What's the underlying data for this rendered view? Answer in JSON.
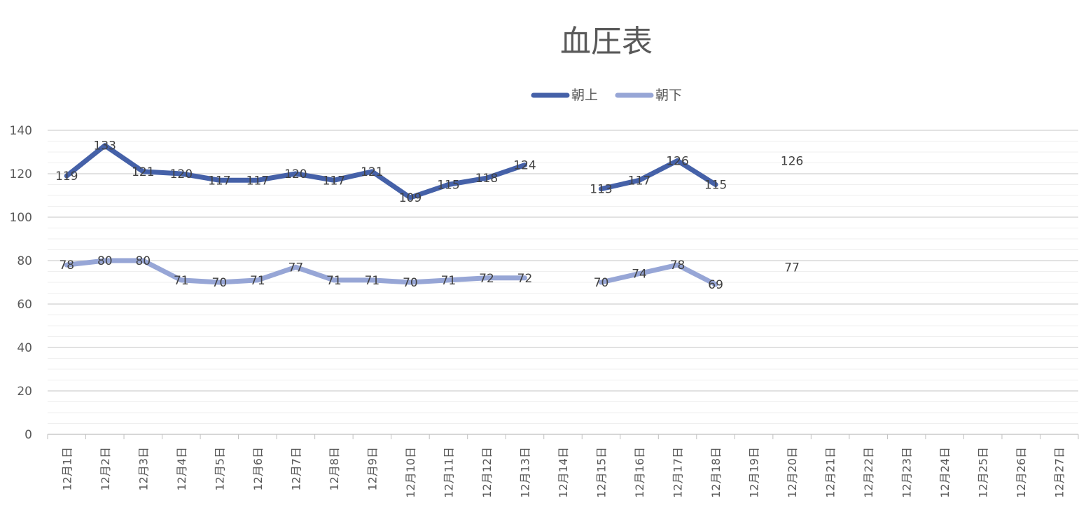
{
  "chart_data": {
    "type": "line",
    "title": "血圧表",
    "categories": [
      "12月1日",
      "12月2日",
      "12月3日",
      "12月4日",
      "12月5日",
      "12月6日",
      "12月7日",
      "12月8日",
      "12月9日",
      "12月10日",
      "12月11日",
      "12月12日",
      "12月13日",
      "12月14日",
      "12月15日",
      "12月16日",
      "12月17日",
      "12月18日",
      "12月19日",
      "12月20日",
      "12月21日",
      "12月22日",
      "12月23日",
      "12月24日",
      "12月25日",
      "12月26日",
      "12月27日"
    ],
    "series": [
      {
        "name": "朝上",
        "color": "#4561A8",
        "values": [
          119,
          133,
          121,
          120,
          117,
          117,
          120,
          117,
          121,
          109,
          115,
          118,
          124,
          null,
          113,
          117,
          126,
          115,
          null,
          126,
          null,
          null,
          null,
          null,
          null,
          null,
          null
        ]
      },
      {
        "name": "朝下",
        "color": "#97A6D6",
        "values": [
          78,
          80,
          80,
          71,
          70,
          71,
          77,
          71,
          71,
          70,
          71,
          72,
          72,
          null,
          70,
          74,
          78,
          69,
          null,
          77,
          null,
          null,
          null,
          null,
          null,
          null,
          null
        ]
      }
    ],
    "ylim": [
      0,
      140
    ],
    "yticks": [
      0,
      20,
      40,
      60,
      80,
      100,
      120,
      140
    ],
    "grid": true,
    "legend": "top-center"
  }
}
